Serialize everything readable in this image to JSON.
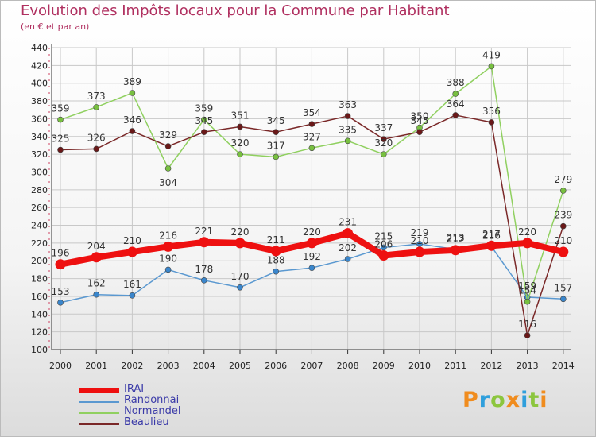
{
  "colors": {
    "title": "#b03060",
    "grid": "#c8c8c8",
    "axis": "#333333",
    "label": "#333333"
  },
  "logo": {
    "letters": [
      "P",
      "r",
      "o",
      "x",
      "i",
      "t",
      "i"
    ],
    "colors": [
      "#f08c1e",
      "#2f9fdc",
      "#8cc63e",
      "#f08c1e",
      "#2f9fdc",
      "#8cc63e",
      "#f08c1e"
    ]
  },
  "chart_data": {
    "type": "line",
    "title": "Evolution des Impôts locaux pour la Commune par Habitant",
    "subtitle": "(en € et par an)",
    "xlabel": "",
    "ylabel": "",
    "x": [
      "2000",
      "2001",
      "2002",
      "2003",
      "2004",
      "2005",
      "2006",
      "2007",
      "2008",
      "2009",
      "2010",
      "2011",
      "2012",
      "2013",
      "2014"
    ],
    "ylim": [
      100,
      440
    ],
    "yticks": [
      100,
      120,
      140,
      160,
      180,
      200,
      220,
      240,
      260,
      280,
      300,
      320,
      340,
      360,
      380,
      400,
      420,
      440
    ],
    "grid": true,
    "legend_position": "bottom-left",
    "series": [
      {
        "name": "IRAI",
        "color": "#ee1010",
        "marker": "#ee1010",
        "values": [
          196,
          204,
          210,
          216,
          221,
          220,
          211,
          220,
          231,
          206,
          210,
          212,
          217,
          220,
          210
        ],
        "labels": [
          "196",
          "204",
          "210",
          "216",
          "221",
          "220",
          "211",
          "220",
          "231",
          "206",
          "210",
          "212",
          "217",
          "220",
          "210"
        ],
        "label_pos": [
          "above",
          "above",
          "above",
          "above",
          "above",
          "above",
          "above",
          "above",
          "above",
          "above",
          "above",
          "above",
          "above",
          "above",
          "above"
        ]
      },
      {
        "name": "Randonnai",
        "color": "#5a98d0",
        "marker": "#3a86cc",
        "values": [
          153,
          162,
          161,
          190,
          178,
          170,
          188,
          192,
          202,
          215,
          219,
          213,
          216,
          159,
          157
        ],
        "labels": [
          "153",
          "162",
          "161",
          "190",
          "178",
          "170",
          "188",
          "192",
          "202",
          "215",
          "219",
          "213",
          "216",
          "159",
          "157"
        ],
        "label_pos": [
          "above",
          "above",
          "above",
          "above",
          "above",
          "above",
          "above",
          "above",
          "above",
          "above",
          "above",
          "above",
          "above",
          "above",
          "above"
        ]
      },
      {
        "name": "Normandel",
        "color": "#90d060",
        "marker": "#78c040",
        "values": [
          359,
          373,
          389,
          304,
          359,
          320,
          317,
          327,
          335,
          320,
          350,
          388,
          419,
          154,
          279
        ],
        "labels": [
          "359",
          "373",
          "389",
          "304",
          "359",
          "320",
          "317",
          "327",
          "335",
          "320",
          "350",
          "388",
          "419",
          "154",
          "279"
        ],
        "label_pos": [
          "above",
          "above",
          "above",
          "below",
          "above",
          "above",
          "above",
          "above",
          "above",
          "above",
          "above",
          "above",
          "above",
          "above",
          "above"
        ]
      },
      {
        "name": "Beaulieu",
        "color": "#7a2828",
        "marker": "#6a1818",
        "values": [
          325,
          326,
          346,
          329,
          345,
          351,
          345,
          354,
          363,
          337,
          345,
          364,
          356,
          116,
          239
        ],
        "labels": [
          "325",
          "326",
          "346",
          "329",
          "345",
          "351",
          "345",
          "354",
          "363",
          "337",
          "345",
          "364",
          "356",
          "116",
          "239"
        ],
        "label_pos": [
          "above",
          "above",
          "above",
          "above",
          "above",
          "above",
          "above",
          "above",
          "above",
          "above",
          "above",
          "above",
          "above",
          "above",
          "above"
        ]
      }
    ]
  }
}
